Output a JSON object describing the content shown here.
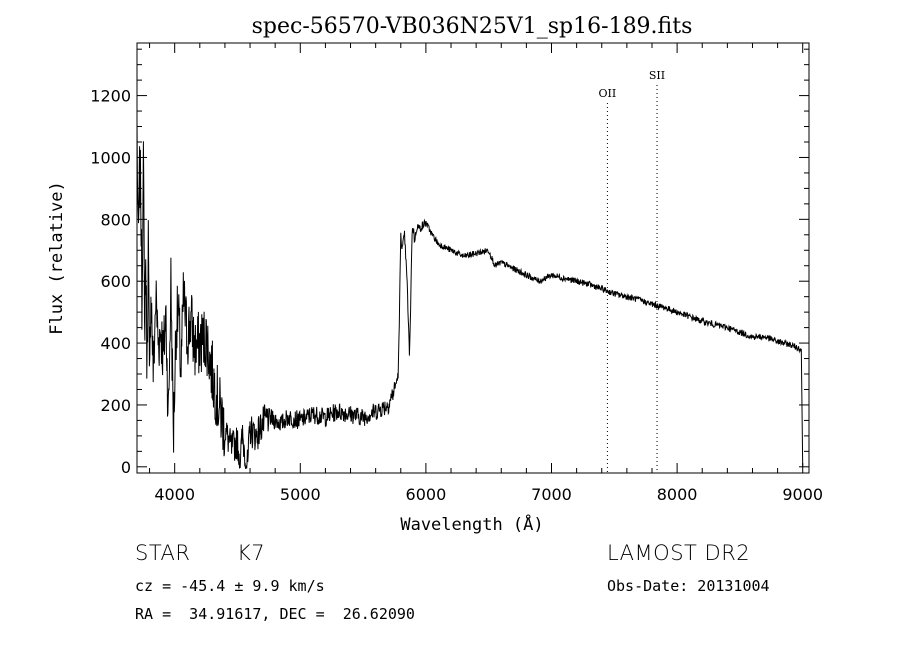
{
  "chart_data": {
    "type": "line",
    "title": "spec-56570-VB036N25V1_sp16-189.fits",
    "xlabel": "Wavelength (Å)",
    "ylabel": "Flux (relative)",
    "xlim": [
      3700,
      9050
    ],
    "ylim": [
      -20,
      1370
    ],
    "xticks": [
      4000,
      5000,
      6000,
      7000,
      8000,
      9000
    ],
    "yticks": [
      0,
      200,
      400,
      600,
      800,
      1000,
      1200
    ],
    "grid": false,
    "lines": [
      {
        "label": "OII",
        "x": 7445
      },
      {
        "label": "SII",
        "x": 7840
      }
    ],
    "series": [
      {
        "x": [
          3700,
          3710,
          3720,
          3730,
          3740,
          3750,
          3760,
          3770,
          3780,
          3790,
          3800,
          3810,
          3830,
          3850,
          3870,
          3890,
          3910,
          3930,
          3950,
          3970,
          3990,
          4010,
          4030,
          4050,
          4070,
          4100,
          4130,
          4160,
          4200,
          4250,
          4300,
          4350,
          4400,
          4450,
          4500,
          4520,
          4540,
          4560,
          4580,
          4600,
          4650,
          4700,
          4750,
          4800,
          4850,
          4900,
          5000,
          5100,
          5200,
          5300,
          5400,
          5500,
          5600,
          5700,
          5750,
          5780,
          5790,
          5800,
          5810,
          5830,
          5850,
          5870,
          5890,
          5900,
          5910,
          5930,
          5950,
          6000,
          6050,
          6100,
          6200,
          6300,
          6400,
          6500,
          6550,
          6600,
          6700,
          6800,
          6900,
          7000,
          7100,
          7200,
          7300,
          7400,
          7500,
          7600,
          7700,
          7800,
          7900,
          8000,
          8100,
          8200,
          8300,
          8400,
          8500,
          8600,
          8700,
          8800,
          8900,
          8990,
          9000
        ],
        "y": [
          1100,
          700,
          950,
          900,
          500,
          1080,
          420,
          700,
          300,
          750,
          200,
          600,
          300,
          550,
          400,
          450,
          350,
          500,
          150,
          600,
          100,
          450,
          500,
          300,
          550,
          420,
          480,
          380,
          400,
          420,
          300,
          200,
          120,
          60,
          80,
          20,
          100,
          40,
          0,
          120,
          100,
          140,
          160,
          150,
          140,
          160,
          150,
          170,
          160,
          180,
          170,
          160,
          180,
          200,
          250,
          300,
          500,
          760,
          700,
          750,
          600,
          350,
          760,
          770,
          730,
          780,
          770,
          790,
          750,
          720,
          700,
          680,
          690,
          700,
          650,
          660,
          640,
          620,
          600,
          620,
          610,
          600,
          590,
          575,
          560,
          550,
          540,
          525,
          515,
          500,
          485,
          470,
          460,
          450,
          435,
          420,
          420,
          405,
          395,
          380,
          0
        ]
      }
    ]
  },
  "info": {
    "class_label": "STAR",
    "subclass_label": "K7",
    "survey": "LAMOST DR2",
    "cz_text": "cz = -45.4 ± 9.9 km/s",
    "obs_date": "Obs-Date: 20131004",
    "coords": "RA =  34.91617, DEC =  26.62090"
  }
}
